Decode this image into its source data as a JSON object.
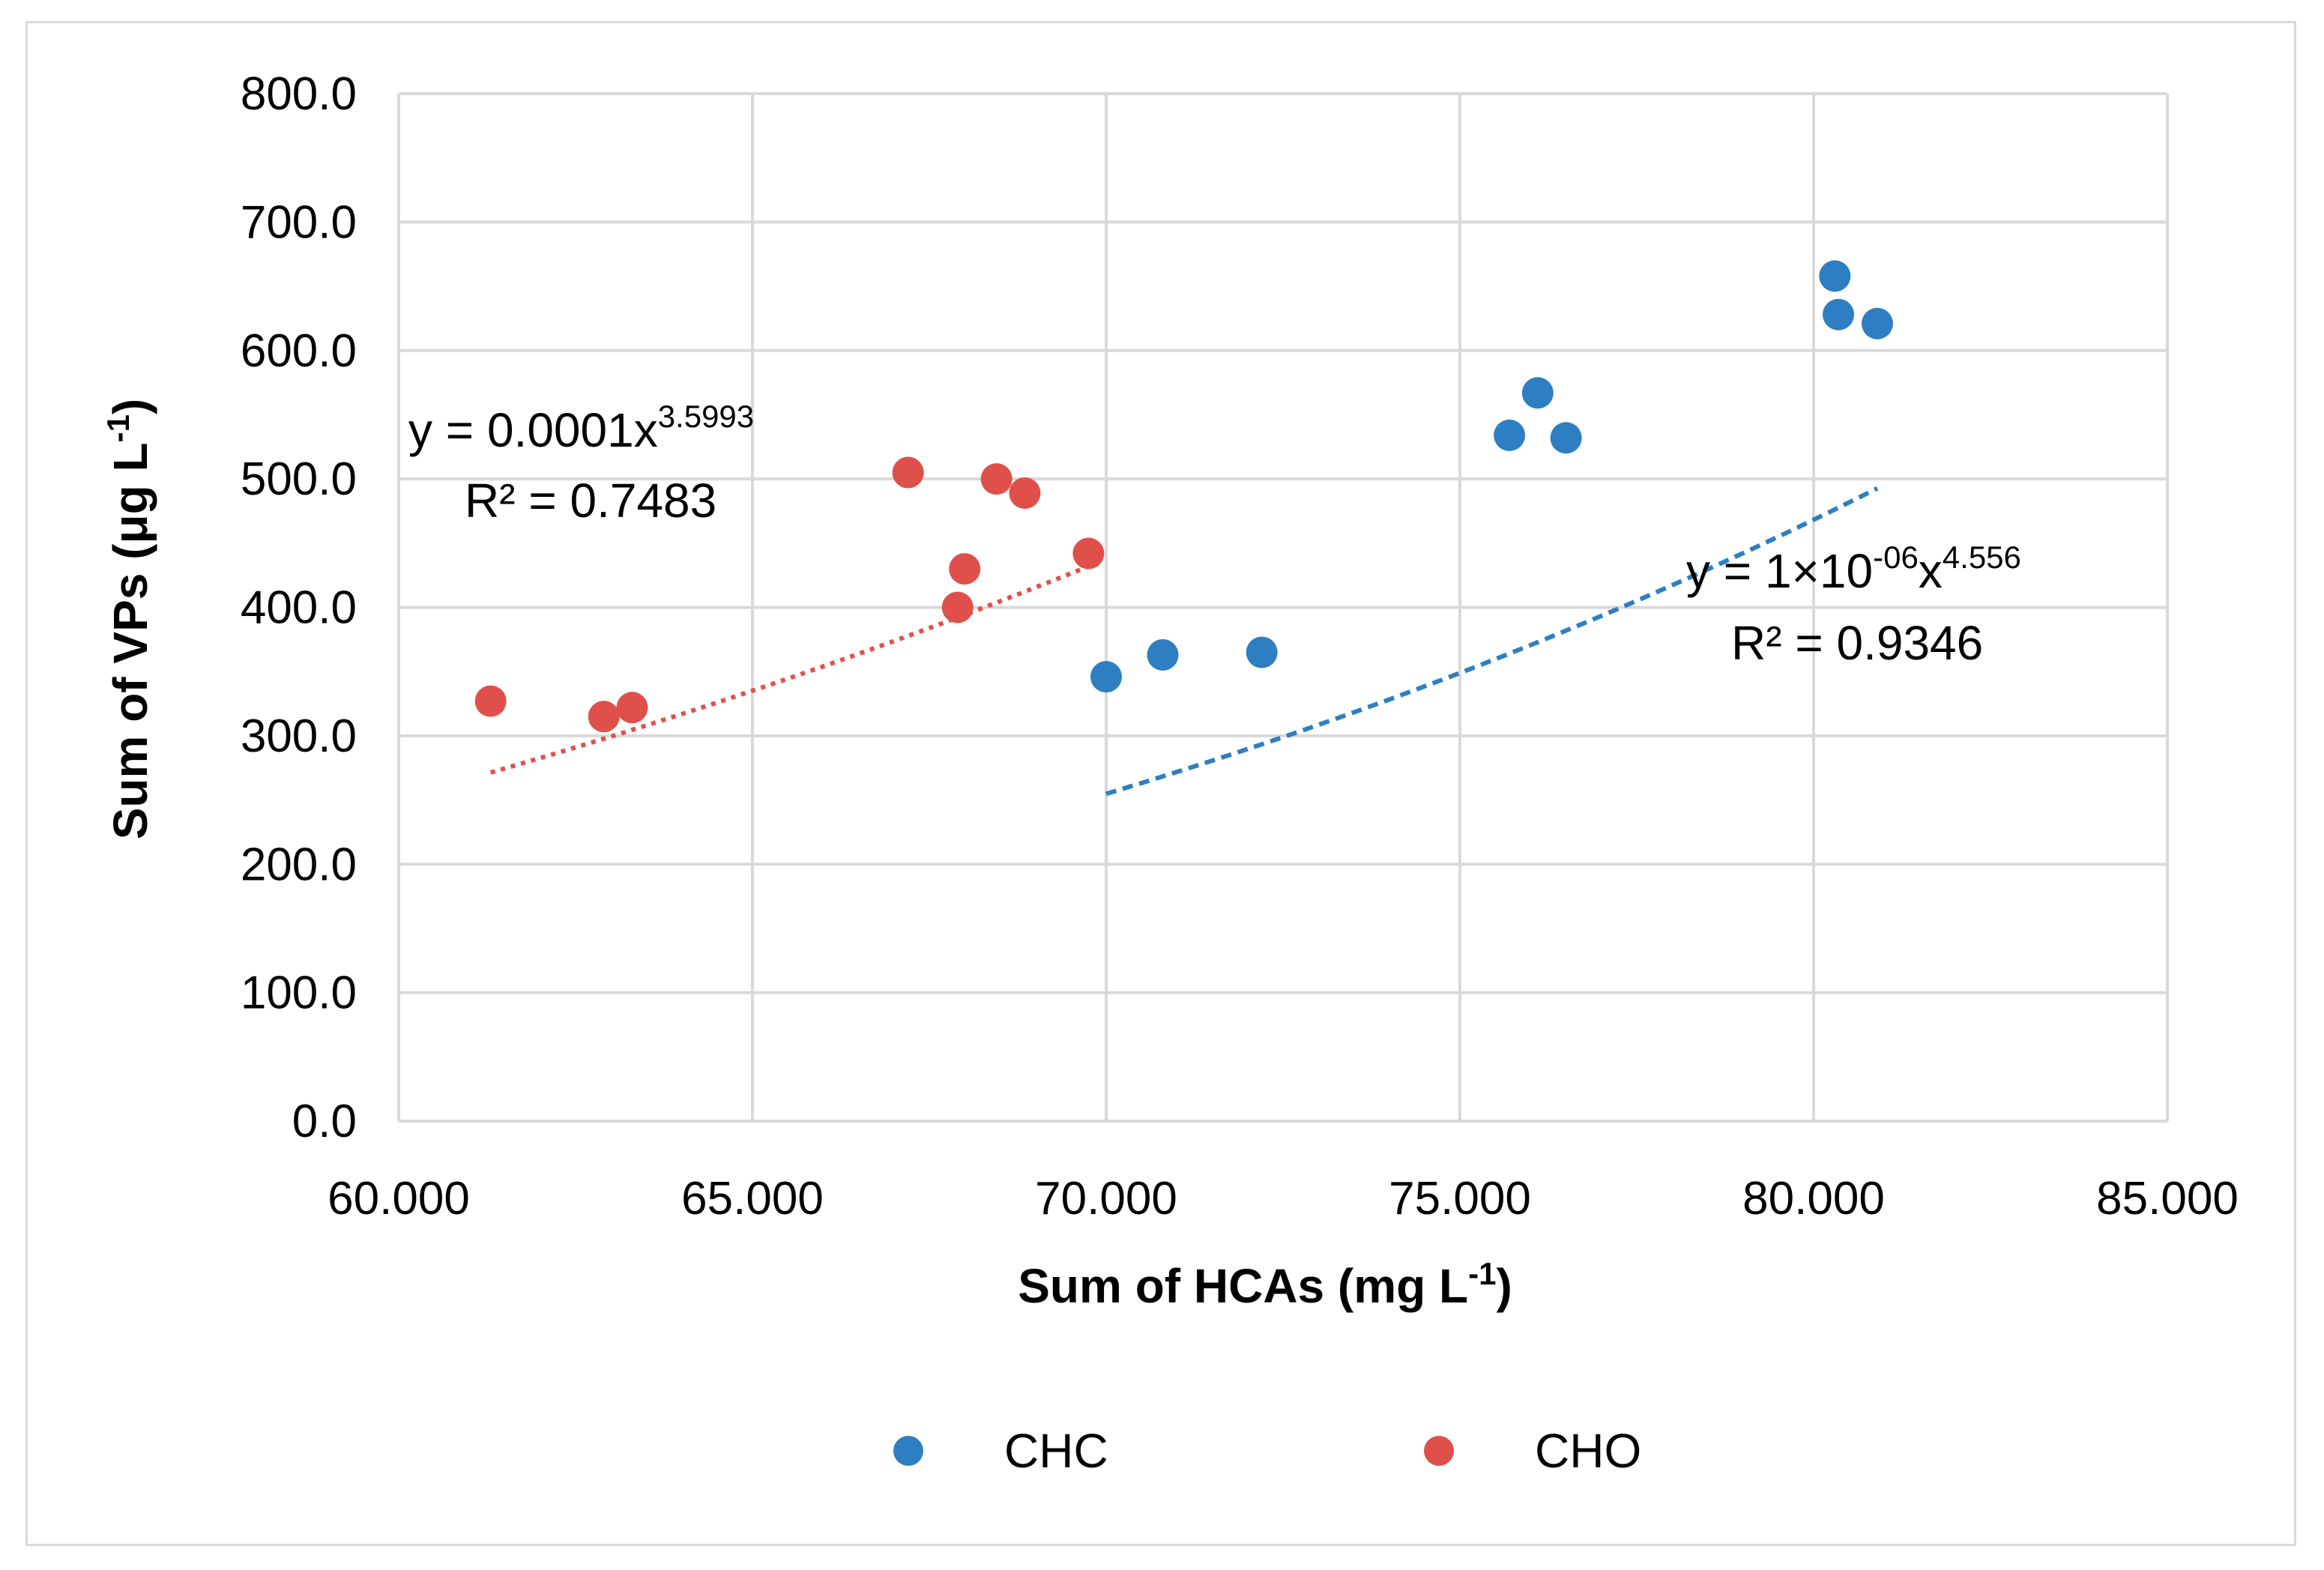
{
  "chart_data": {
    "type": "scatter",
    "title": "",
    "xlabel": "Sum of HCAs (mg L",
    "xlabel_sup": "-1",
    "xlabel_end": ")",
    "ylabel": "Sum of VPs (μg L",
    "ylabel_sup": "-1",
    "ylabel_end": ")",
    "xlim": [
      60,
      85
    ],
    "ylim": [
      0,
      800
    ],
    "grid": true,
    "legend_position": "bottom",
    "x_ticks": [
      60,
      65,
      70,
      75,
      80,
      85
    ],
    "x_tick_labels": [
      "60.000",
      "65.000",
      "70.000",
      "75.000",
      "80.000",
      "85.000"
    ],
    "y_ticks": [
      0,
      100,
      200,
      300,
      400,
      500,
      600,
      700,
      800
    ],
    "y_tick_labels": [
      "0.0",
      "100.0",
      "200.0",
      "300.0",
      "400.0",
      "500.0",
      "600.0",
      "700.0",
      "800.0"
    ],
    "series": [
      {
        "name": "CHC",
        "color": "#2e7fc1",
        "x": [
          70.0,
          70.8,
          72.2,
          75.7,
          76.1,
          76.5,
          80.3,
          80.35,
          80.9
        ],
        "y": [
          346,
          363,
          365,
          534,
          567,
          532,
          658,
          628,
          621
        ],
        "trendline": {
          "type": "power",
          "style": "dashed",
          "a": 1e-06,
          "b": 4.556,
          "x_range": [
            70.0,
            80.9
          ],
          "equation_prefix": "y = 1×10",
          "equation_exp1": "-06",
          "equation_mid": "x",
          "equation_exp2": "4.556",
          "r2_label": "R² = 0.9346"
        }
      },
      {
        "name": "CHO",
        "color": "#e0504b",
        "x": [
          61.3,
          62.9,
          63.3,
          67.2,
          67.9,
          68.0,
          68.45,
          68.85,
          69.75
        ],
        "y": [
          327,
          315,
          322,
          505,
          400,
          430,
          500,
          489,
          442
        ],
        "trendline": {
          "type": "power",
          "style": "dotted",
          "a": 0.0001,
          "b": 3.5993,
          "x_range": [
            61.3,
            69.75
          ],
          "equation_prefix": "y = 0.0001x",
          "equation_exp2": "3.5993",
          "r2_label": "R² = 0.7483"
        }
      }
    ]
  }
}
